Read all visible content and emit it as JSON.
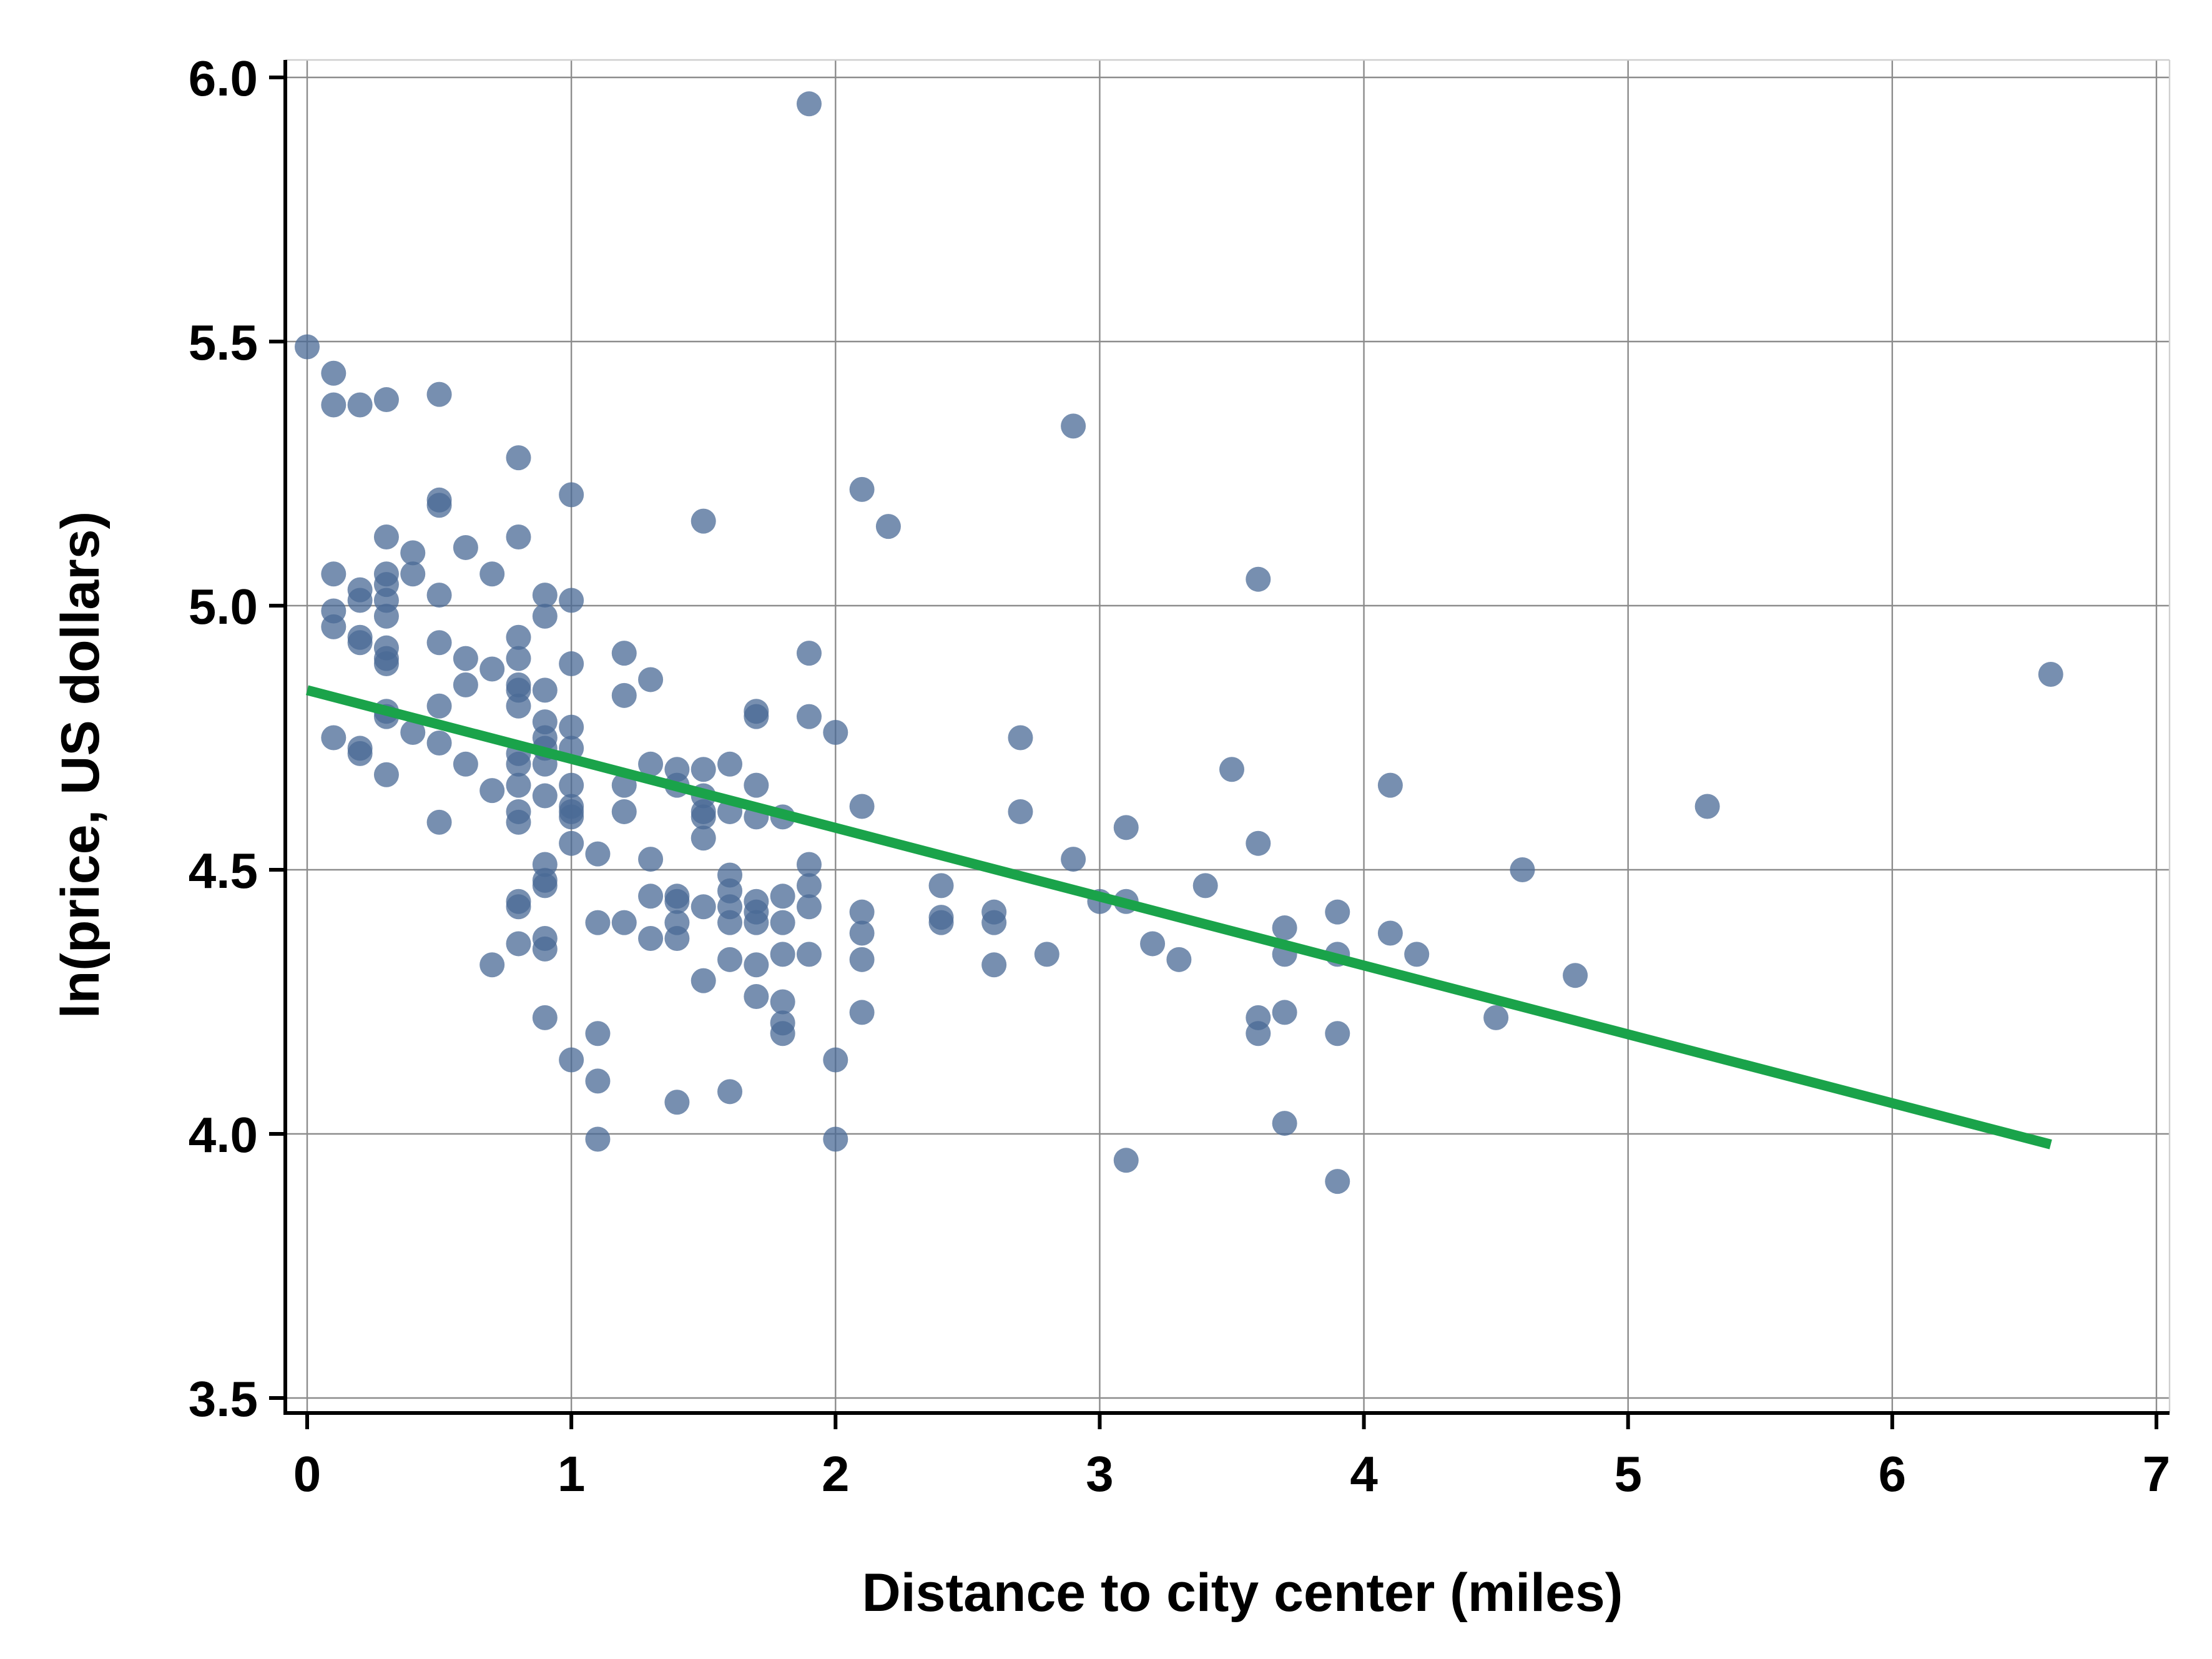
{
  "chart_data": {
    "type": "scatter",
    "title": "",
    "xlabel": "Distance to city center (miles)",
    "ylabel": "ln(price, US dollars)",
    "xlim": [
      0,
      7
    ],
    "ylim": [
      3.5,
      6.0
    ],
    "xticks": [
      "0",
      "1",
      "2",
      "3",
      "4",
      "5",
      "6",
      "7"
    ],
    "yticks": [
      "3.5",
      "4.0",
      "4.5",
      "5.0",
      "5.5",
      "6.0"
    ],
    "grid": true,
    "legend": "none",
    "colors": {
      "points": "#4a6a96",
      "fit_line": "#1aa34a",
      "grid": "#8c8c8c",
      "axis": "#000000"
    },
    "series": [
      {
        "kind": "points",
        "points": [
          [
            0.0,
            5.49
          ],
          [
            0.1,
            5.44
          ],
          [
            0.1,
            5.38
          ],
          [
            0.2,
            5.38
          ],
          [
            0.3,
            5.39
          ],
          [
            0.5,
            5.4
          ],
          [
            0.1,
            5.06
          ],
          [
            0.1,
            4.99
          ],
          [
            0.1,
            4.96
          ],
          [
            0.1,
            4.75
          ],
          [
            0.2,
            5.03
          ],
          [
            0.2,
            5.01
          ],
          [
            0.2,
            4.94
          ],
          [
            0.2,
            4.93
          ],
          [
            0.2,
            4.73
          ],
          [
            0.2,
            4.72
          ],
          [
            0.3,
            5.13
          ],
          [
            0.3,
            5.06
          ],
          [
            0.3,
            5.04
          ],
          [
            0.3,
            5.01
          ],
          [
            0.3,
            4.98
          ],
          [
            0.3,
            4.92
          ],
          [
            0.3,
            4.9
          ],
          [
            0.3,
            4.89
          ],
          [
            0.3,
            4.8
          ],
          [
            0.3,
            4.79
          ],
          [
            0.3,
            4.68
          ],
          [
            0.4,
            5.1
          ],
          [
            0.4,
            5.06
          ],
          [
            0.4,
            4.76
          ],
          [
            0.5,
            5.2
          ],
          [
            0.5,
            5.19
          ],
          [
            0.5,
            5.02
          ],
          [
            0.5,
            4.93
          ],
          [
            0.5,
            4.81
          ],
          [
            0.5,
            4.74
          ],
          [
            0.5,
            4.59
          ],
          [
            0.6,
            5.11
          ],
          [
            0.6,
            4.9
          ],
          [
            0.6,
            4.85
          ],
          [
            0.6,
            4.7
          ],
          [
            0.7,
            5.06
          ],
          [
            0.7,
            4.88
          ],
          [
            0.7,
            4.65
          ],
          [
            0.7,
            4.32
          ],
          [
            0.8,
            5.28
          ],
          [
            0.8,
            5.13
          ],
          [
            0.8,
            4.94
          ],
          [
            0.8,
            4.9
          ],
          [
            0.8,
            4.85
          ],
          [
            0.8,
            4.84
          ],
          [
            0.8,
            4.81
          ],
          [
            0.8,
            4.72
          ],
          [
            0.8,
            4.7
          ],
          [
            0.8,
            4.66
          ],
          [
            0.8,
            4.61
          ],
          [
            0.8,
            4.59
          ],
          [
            0.8,
            4.44
          ],
          [
            0.8,
            4.43
          ],
          [
            0.8,
            4.36
          ],
          [
            0.9,
            5.02
          ],
          [
            0.9,
            4.98
          ],
          [
            0.9,
            4.84
          ],
          [
            0.9,
            4.78
          ],
          [
            0.9,
            4.75
          ],
          [
            0.9,
            4.73
          ],
          [
            0.9,
            4.7
          ],
          [
            0.9,
            4.64
          ],
          [
            0.9,
            4.51
          ],
          [
            0.9,
            4.48
          ],
          [
            0.9,
            4.47
          ],
          [
            0.9,
            4.37
          ],
          [
            0.9,
            4.35
          ],
          [
            0.9,
            4.22
          ],
          [
            1.0,
            5.21
          ],
          [
            1.0,
            5.01
          ],
          [
            1.0,
            4.89
          ],
          [
            1.0,
            4.77
          ],
          [
            1.0,
            4.73
          ],
          [
            1.0,
            4.66
          ],
          [
            1.0,
            4.62
          ],
          [
            1.0,
            4.61
          ],
          [
            1.0,
            4.6
          ],
          [
            1.0,
            4.55
          ],
          [
            1.0,
            4.14
          ],
          [
            1.1,
            4.53
          ],
          [
            1.1,
            4.4
          ],
          [
            1.1,
            4.19
          ],
          [
            1.1,
            4.1
          ],
          [
            1.1,
            3.99
          ],
          [
            1.2,
            4.91
          ],
          [
            1.2,
            4.83
          ],
          [
            1.2,
            4.66
          ],
          [
            1.2,
            4.61
          ],
          [
            1.2,
            4.4
          ],
          [
            1.3,
            4.86
          ],
          [
            1.3,
            4.7
          ],
          [
            1.3,
            4.52
          ],
          [
            1.3,
            4.45
          ],
          [
            1.3,
            4.37
          ],
          [
            1.4,
            4.69
          ],
          [
            1.4,
            4.66
          ],
          [
            1.4,
            4.45
          ],
          [
            1.4,
            4.44
          ],
          [
            1.4,
            4.4
          ],
          [
            1.4,
            4.37
          ],
          [
            1.4,
            4.06
          ],
          [
            1.5,
            5.16
          ],
          [
            1.5,
            4.69
          ],
          [
            1.5,
            4.64
          ],
          [
            1.5,
            4.61
          ],
          [
            1.5,
            4.6
          ],
          [
            1.5,
            4.56
          ],
          [
            1.5,
            4.43
          ],
          [
            1.5,
            4.29
          ],
          [
            1.6,
            4.7
          ],
          [
            1.6,
            4.61
          ],
          [
            1.6,
            4.49
          ],
          [
            1.6,
            4.46
          ],
          [
            1.6,
            4.43
          ],
          [
            1.6,
            4.4
          ],
          [
            1.6,
            4.33
          ],
          [
            1.6,
            4.08
          ],
          [
            1.7,
            4.8
          ],
          [
            1.7,
            4.79
          ],
          [
            1.7,
            4.66
          ],
          [
            1.7,
            4.6
          ],
          [
            1.7,
            4.44
          ],
          [
            1.7,
            4.42
          ],
          [
            1.7,
            4.4
          ],
          [
            1.7,
            4.32
          ],
          [
            1.7,
            4.26
          ],
          [
            1.8,
            4.6
          ],
          [
            1.8,
            4.45
          ],
          [
            1.8,
            4.4
          ],
          [
            1.8,
            4.34
          ],
          [
            1.8,
            4.25
          ],
          [
            1.8,
            4.21
          ],
          [
            1.8,
            4.19
          ],
          [
            1.9,
            5.95
          ],
          [
            1.9,
            4.91
          ],
          [
            1.9,
            4.79
          ],
          [
            1.9,
            4.51
          ],
          [
            1.9,
            4.47
          ],
          [
            1.9,
            4.43
          ],
          [
            1.9,
            4.34
          ],
          [
            2.0,
            4.76
          ],
          [
            2.0,
            4.14
          ],
          [
            2.0,
            3.99
          ],
          [
            2.1,
            5.22
          ],
          [
            2.1,
            4.62
          ],
          [
            2.1,
            4.42
          ],
          [
            2.1,
            4.38
          ],
          [
            2.1,
            4.33
          ],
          [
            2.1,
            4.23
          ],
          [
            2.2,
            5.15
          ],
          [
            2.4,
            4.47
          ],
          [
            2.4,
            4.41
          ],
          [
            2.4,
            4.4
          ],
          [
            2.6,
            4.42
          ],
          [
            2.6,
            4.4
          ],
          [
            2.6,
            4.32
          ],
          [
            2.7,
            4.75
          ],
          [
            2.7,
            4.61
          ],
          [
            2.8,
            4.34
          ],
          [
            2.9,
            5.34
          ],
          [
            2.9,
            4.52
          ],
          [
            3.0,
            4.44
          ],
          [
            3.1,
            4.58
          ],
          [
            3.1,
            4.44
          ],
          [
            3.1,
            3.95
          ],
          [
            3.2,
            4.36
          ],
          [
            3.3,
            4.33
          ],
          [
            3.4,
            4.47
          ],
          [
            3.5,
            4.69
          ],
          [
            3.6,
            5.05
          ],
          [
            3.6,
            4.55
          ],
          [
            3.6,
            4.22
          ],
          [
            3.6,
            4.19
          ],
          [
            3.7,
            4.39
          ],
          [
            3.7,
            4.34
          ],
          [
            3.7,
            4.23
          ],
          [
            3.7,
            4.02
          ],
          [
            3.9,
            4.42
          ],
          [
            3.9,
            4.34
          ],
          [
            3.9,
            4.19
          ],
          [
            3.9,
            3.91
          ],
          [
            4.1,
            4.66
          ],
          [
            4.1,
            4.38
          ],
          [
            4.2,
            4.34
          ],
          [
            4.5,
            4.22
          ],
          [
            4.6,
            4.5
          ],
          [
            4.8,
            4.3
          ],
          [
            5.3,
            4.62
          ],
          [
            6.6,
            4.87
          ]
        ]
      },
      {
        "kind": "fit_line",
        "x": [
          0,
          6.6
        ],
        "y": [
          4.84,
          3.98
        ]
      }
    ]
  }
}
